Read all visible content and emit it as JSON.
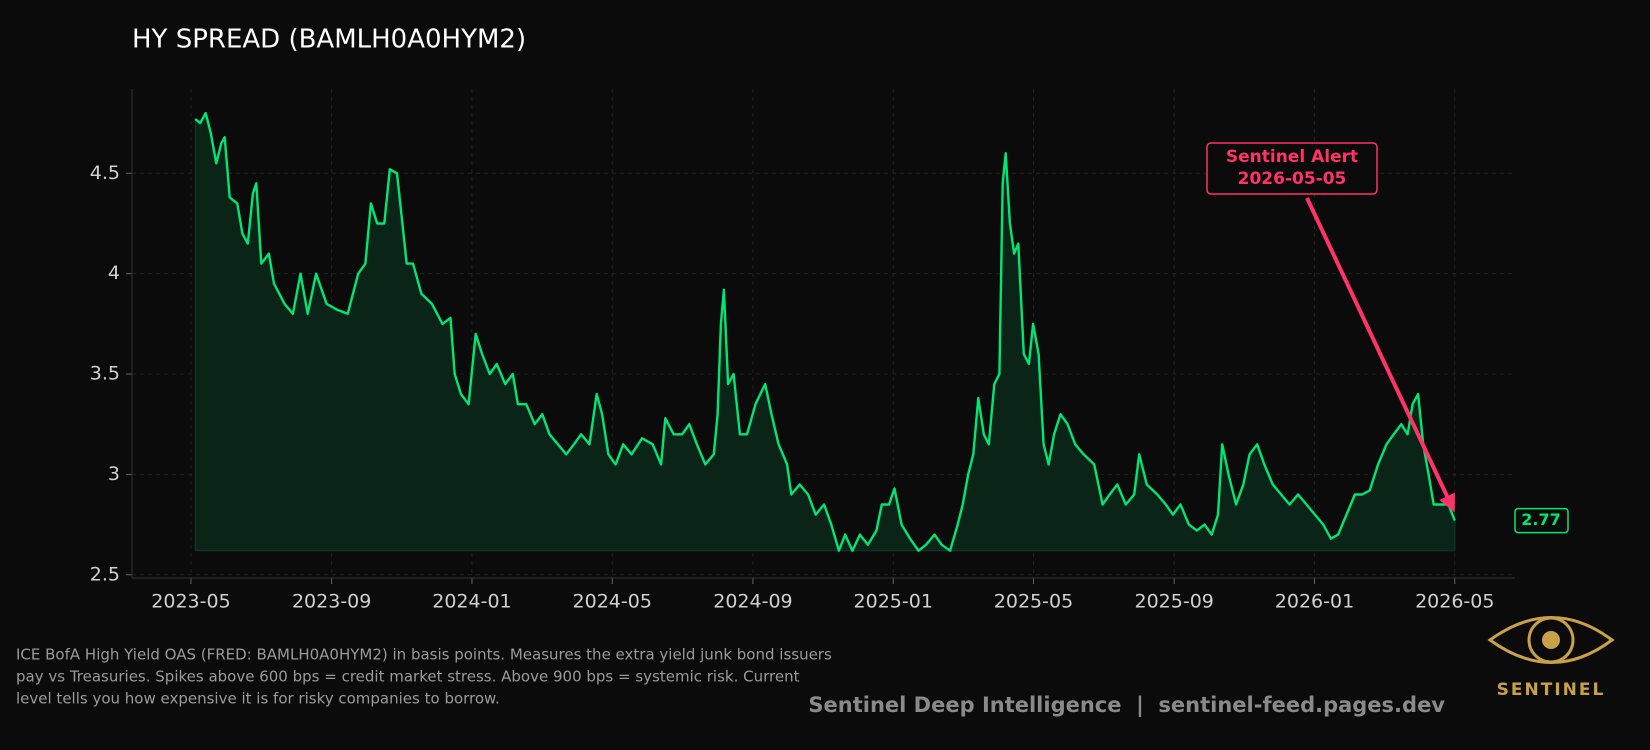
{
  "chart_data": {
    "type": "line",
    "title": "HY SPREAD (BAMLH0A0HYM2)",
    "color": "#00e676",
    "fill_color": "#0a2418",
    "grid": true,
    "x": [
      2023.343,
      2023.355,
      2023.368,
      2023.38,
      2023.393,
      2023.405,
      2023.413,
      2023.425,
      2023.443,
      2023.455,
      2023.468,
      2023.48,
      2023.488,
      2023.5,
      2023.518,
      2023.53,
      2023.543,
      2023.555,
      2023.575,
      2023.593,
      2023.61,
      2023.63,
      2023.655,
      2023.68,
      2023.705,
      2023.73,
      2023.747,
      2023.76,
      2023.775,
      2023.792,
      2023.805,
      2023.822,
      2023.835,
      2023.845,
      2023.86,
      2023.88,
      2023.905,
      2023.93,
      2023.949,
      2023.959,
      2023.974,
      2023.992,
      2024.009,
      2024.024,
      2024.042,
      2024.059,
      2024.079,
      2024.097,
      2024.109,
      2024.129,
      2024.149,
      2024.167,
      2024.184,
      2024.204,
      2024.224,
      2024.242,
      2024.259,
      2024.279,
      2024.296,
      2024.309,
      2024.324,
      2024.341,
      2024.359,
      2024.379,
      2024.404,
      2024.429,
      2024.449,
      2024.459,
      2024.479,
      2024.499,
      2024.516,
      2024.534,
      2024.554,
      2024.574,
      2024.583,
      2024.591,
      2024.598,
      2024.608,
      2024.621,
      2024.636,
      2024.653,
      2024.673,
      2024.696,
      2024.711,
      2024.728,
      2024.748,
      2024.758,
      2024.778,
      2024.798,
      2024.816,
      2024.836,
      2024.853,
      2024.871,
      2024.886,
      2024.903,
      2024.921,
      2024.94,
      2024.96,
      2024.973,
      2024.99,
      2025.003,
      2025.02,
      2025.04,
      2025.06,
      2025.078,
      2025.098,
      2025.115,
      2025.135,
      2025.153,
      2025.165,
      2025.178,
      2025.19,
      2025.202,
      2025.215,
      2025.227,
      2025.24,
      2025.252,
      2025.26,
      2025.267,
      2025.277,
      2025.287,
      2025.297,
      2025.31,
      2025.322,
      2025.332,
      2025.345,
      2025.357,
      2025.369,
      2025.382,
      2025.397,
      2025.414,
      2025.432,
      2025.452,
      2025.477,
      2025.497,
      2025.514,
      2025.532,
      2025.552,
      2025.572,
      2025.584,
      2025.602,
      2025.627,
      2025.647,
      2025.664,
      2025.682,
      2025.702,
      2025.721,
      2025.739,
      2025.756,
      2025.771,
      2025.781,
      2025.796,
      2025.814,
      2025.831,
      2025.846,
      2025.864,
      2025.881,
      2025.901,
      2025.921,
      2025.941,
      2025.961,
      2025.981,
      2026.001,
      2026.021,
      2026.039,
      2026.056,
      2026.076,
      2026.096,
      2026.113,
      2026.131,
      2026.151,
      2026.171,
      2026.188,
      2026.206,
      2026.221,
      2026.233,
      2026.246,
      2026.258,
      2026.271,
      2026.283,
      2026.301,
      2026.318,
      2026.333
    ],
    "values": [
      4.77,
      4.75,
      4.8,
      4.7,
      4.55,
      4.65,
      4.68,
      4.38,
      4.35,
      4.2,
      4.15,
      4.4,
      4.45,
      4.05,
      4.1,
      3.95,
      3.9,
      3.85,
      3.8,
      4.0,
      3.8,
      4.0,
      3.85,
      3.82,
      3.8,
      4.0,
      4.05,
      4.35,
      4.25,
      4.25,
      4.52,
      4.5,
      4.25,
      4.05,
      4.05,
      3.9,
      3.85,
      3.75,
      3.78,
      3.5,
      3.4,
      3.35,
      3.7,
      3.6,
      3.5,
      3.55,
      3.45,
      3.5,
      3.35,
      3.35,
      3.25,
      3.3,
      3.2,
      3.15,
      3.1,
      3.15,
      3.2,
      3.15,
      3.4,
      3.3,
      3.1,
      3.05,
      3.15,
      3.1,
      3.18,
      3.15,
      3.05,
      3.28,
      3.2,
      3.2,
      3.25,
      3.15,
      3.05,
      3.1,
      3.3,
      3.75,
      3.92,
      3.45,
      3.5,
      3.2,
      3.2,
      3.35,
      3.45,
      3.3,
      3.15,
      3.05,
      2.9,
      2.95,
      2.9,
      2.8,
      2.85,
      2.75,
      2.62,
      2.7,
      2.62,
      2.7,
      2.65,
      2.72,
      2.85,
      2.85,
      2.93,
      2.75,
      2.68,
      2.62,
      2.65,
      2.7,
      2.65,
      2.62,
      2.75,
      2.85,
      3.0,
      3.1,
      3.38,
      3.2,
      3.15,
      3.45,
      3.5,
      4.45,
      4.6,
      4.25,
      4.1,
      4.15,
      3.6,
      3.55,
      3.75,
      3.6,
      3.15,
      3.05,
      3.2,
      3.3,
      3.25,
      3.15,
      3.1,
      3.05,
      2.85,
      2.9,
      2.95,
      2.85,
      2.9,
      3.1,
      2.95,
      2.9,
      2.85,
      2.8,
      2.85,
      2.75,
      2.72,
      2.75,
      2.7,
      2.8,
      3.15,
      3.0,
      2.85,
      2.95,
      3.1,
      3.15,
      3.05,
      2.95,
      2.9,
      2.85,
      2.9,
      2.85,
      2.8,
      2.75,
      2.68,
      2.7,
      2.8,
      2.9,
      2.9,
      2.92,
      3.05,
      3.15,
      3.2,
      3.25,
      3.2,
      3.35,
      3.4,
      3.15,
      3.0,
      2.85,
      2.85,
      2.85,
      2.77
    ],
    "xlim": [
      2023.193,
      2026.476
    ],
    "xticks": [
      {
        "value": 2023.333,
        "label": "2023-05"
      },
      {
        "value": 2023.667,
        "label": "2023-09"
      },
      {
        "value": 2024.0,
        "label": "2024-01"
      },
      {
        "value": 2024.333,
        "label": "2024-05"
      },
      {
        "value": 2024.667,
        "label": "2024-09"
      },
      {
        "value": 2025.0,
        "label": "2025-01"
      },
      {
        "value": 2025.333,
        "label": "2025-05"
      },
      {
        "value": 2025.667,
        "label": "2025-09"
      },
      {
        "value": 2026.0,
        "label": "2026-01"
      },
      {
        "value": 2026.333,
        "label": "2026-05"
      }
    ],
    "ylim": [
      2.484,
      4.92
    ],
    "yticks": [
      2.5,
      3.0,
      3.5,
      4.0,
      4.5
    ],
    "annotation": {
      "text": "Sentinel Alert",
      "date": "2026-05-05",
      "color": "#ff3366"
    },
    "last_value": 2.77,
    "description": [
      "ICE BofA High Yield OAS (FRED: BAMLH0A0HYM2) in basis points. Measures the extra yield junk bond issuers",
      "pay vs Treasuries. Spikes above 600 bps = credit market stress. Above 900 bps = systemic risk. Current",
      "level tells you how expensive it is for risky companies to borrow."
    ],
    "credit": "Sentinel Deep Intelligence  |  sentinel-feed.pages.dev",
    "logo_text": "SENTINEL"
  }
}
